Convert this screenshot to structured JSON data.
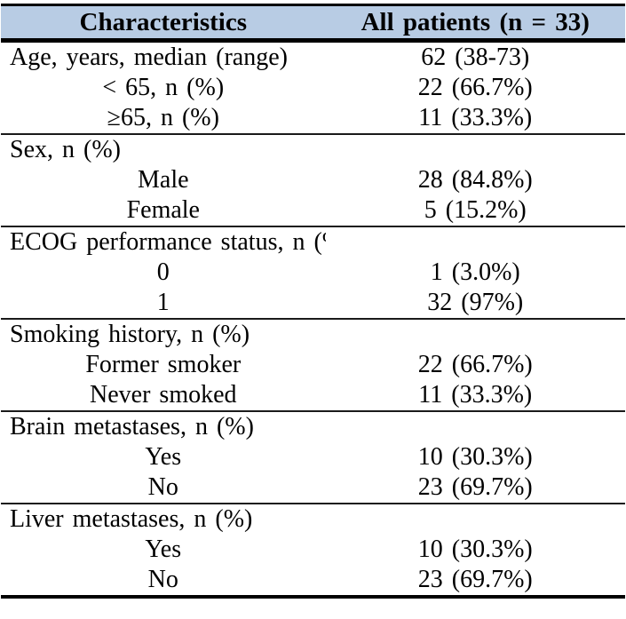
{
  "table": {
    "header": {
      "characteristics": "Characteristics",
      "all_patients": "All patients (n = 33)"
    },
    "colors": {
      "header_background": "#b8cce4",
      "rule_color": "#000000",
      "text_color": "#000000"
    },
    "sections": [
      {
        "rows": [
          {
            "label": "Age, years, median (range)",
            "value": "62 (38-73)"
          },
          {
            "label": "< 65, n (%)",
            "value": "22 (66.7%)"
          },
          {
            "label": "≥65, n (%)",
            "value": "11 (33.3%)"
          }
        ]
      },
      {
        "rows": [
          {
            "label": "Sex, n (%)",
            "value": ""
          },
          {
            "label": "Male",
            "value": "28 (84.8%)"
          },
          {
            "label": "Female",
            "value": "5 (15.2%)"
          }
        ]
      },
      {
        "rows": [
          {
            "label": "ECOG performance status, n (%)",
            "value": ""
          },
          {
            "label": "0",
            "value": "1 (3.0%)"
          },
          {
            "label": "1",
            "value": "32 (97%)"
          }
        ]
      },
      {
        "rows": [
          {
            "label": "Smoking history, n (%)",
            "value": ""
          },
          {
            "label": "Former smoker",
            "value": "22 (66.7%)"
          },
          {
            "label": "Never smoked",
            "value": "11 (33.3%)"
          }
        ]
      },
      {
        "rows": [
          {
            "label": "Brain metastases, n (%)",
            "value": ""
          },
          {
            "label": "Yes",
            "value": "10 (30.3%)"
          },
          {
            "label": "No",
            "value": "23 (69.7%)"
          }
        ]
      },
      {
        "rows": [
          {
            "label": "Liver metastases, n (%)",
            "value": ""
          },
          {
            "label": "Yes",
            "value": "10 (30.3%)"
          },
          {
            "label": "No",
            "value": "23 (69.7%)"
          }
        ]
      }
    ]
  }
}
